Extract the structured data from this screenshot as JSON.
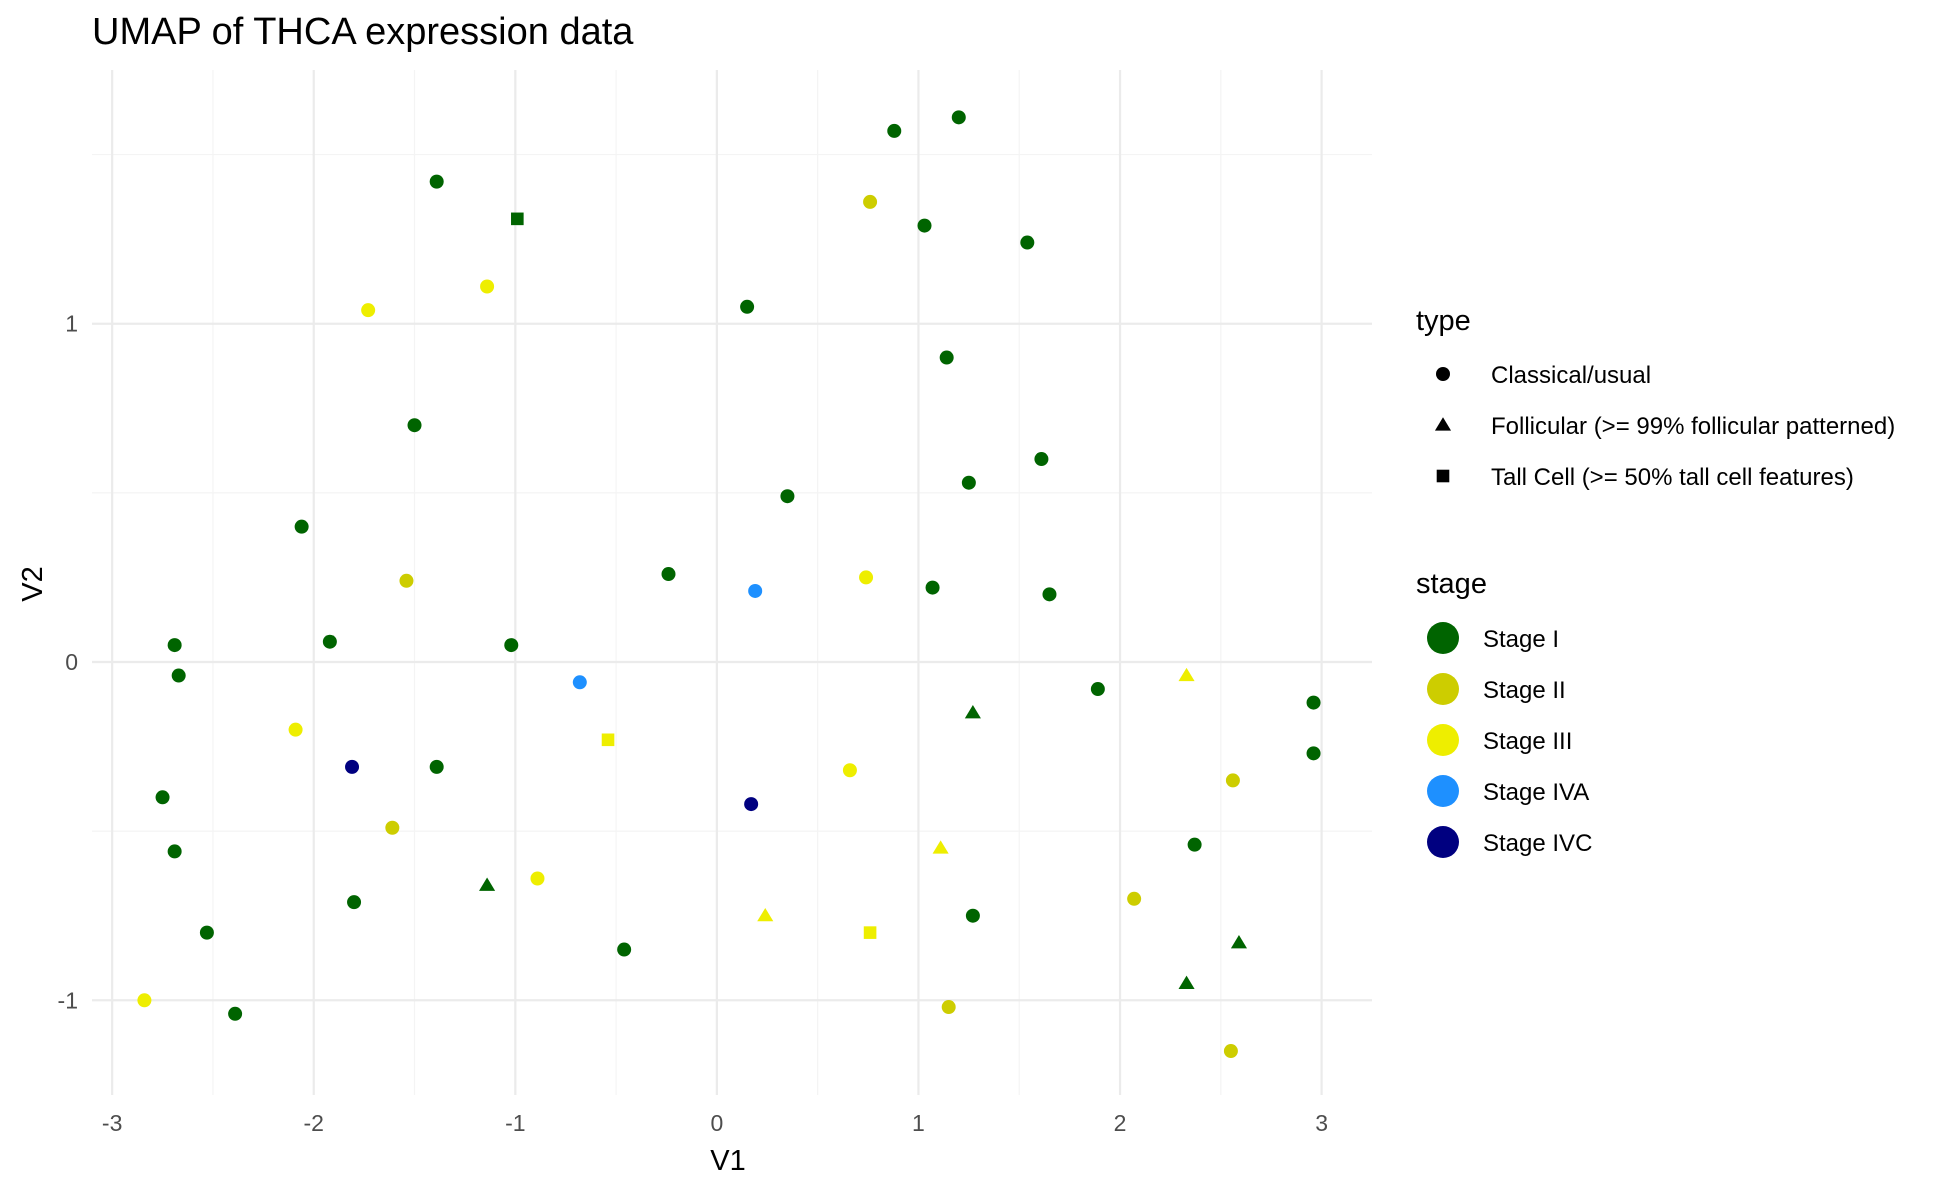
{
  "chart_data": {
    "type": "scatter",
    "title": "UMAP of THCA expression data",
    "xlabel": "V1",
    "ylabel": "V2",
    "xlim": [
      -3.1,
      3.25
    ],
    "ylim": [
      -1.28,
      1.75
    ],
    "x_ticks": [
      -3,
      -2,
      -1,
      0,
      1,
      2,
      3
    ],
    "x_tick_labels": [
      "-3",
      "-2",
      "-1",
      "0",
      "1",
      "2",
      "3"
    ],
    "y_ticks": [
      -1,
      0,
      1
    ],
    "y_tick_labels": [
      "-1",
      "0",
      "1"
    ],
    "grid": true,
    "legend_position": "right",
    "legends": {
      "type": {
        "title": "type",
        "entries": [
          {
            "label": "Classical/usual",
            "shape": "circle"
          },
          {
            "label": "Follicular (>= 99% follicular patterned)",
            "shape": "triangle"
          },
          {
            "label": "Tall Cell (>= 50% tall cell features)",
            "shape": "square"
          }
        ]
      },
      "stage": {
        "title": "stage",
        "entries": [
          {
            "label": "Stage I",
            "color": "#006400"
          },
          {
            "label": "Stage II",
            "color": "#CDCD00"
          },
          {
            "label": "Stage III",
            "color": "#EEEE00"
          },
          {
            "label": "Stage IVA",
            "color": "#1E90FF"
          },
          {
            "label": "Stage IVC",
            "color": "#000080"
          }
        ]
      }
    },
    "points": [
      {
        "x": 1.2,
        "y": 1.61,
        "type": "Classical/usual",
        "stage": "Stage I"
      },
      {
        "x": 0.88,
        "y": 1.57,
        "type": "Classical/usual",
        "stage": "Stage I"
      },
      {
        "x": -1.39,
        "y": 1.42,
        "type": "Classical/usual",
        "stage": "Stage I"
      },
      {
        "x": 0.76,
        "y": 1.36,
        "type": "Classical/usual",
        "stage": "Stage II"
      },
      {
        "x": -0.99,
        "y": 1.31,
        "type": "Tall Cell (>= 50% tall cell features)",
        "stage": "Stage I"
      },
      {
        "x": 1.03,
        "y": 1.29,
        "type": "Classical/usual",
        "stage": "Stage I"
      },
      {
        "x": 1.54,
        "y": 1.24,
        "type": "Classical/usual",
        "stage": "Stage I"
      },
      {
        "x": -1.14,
        "y": 1.11,
        "type": "Classical/usual",
        "stage": "Stage III"
      },
      {
        "x": 0.15,
        "y": 1.05,
        "type": "Classical/usual",
        "stage": "Stage I"
      },
      {
        "x": -1.73,
        "y": 1.04,
        "type": "Classical/usual",
        "stage": "Stage III"
      },
      {
        "x": 1.14,
        "y": 0.9,
        "type": "Classical/usual",
        "stage": "Stage I"
      },
      {
        "x": -1.5,
        "y": 0.7,
        "type": "Classical/usual",
        "stage": "Stage I"
      },
      {
        "x": 1.61,
        "y": 0.6,
        "type": "Classical/usual",
        "stage": "Stage I"
      },
      {
        "x": 1.25,
        "y": 0.53,
        "type": "Classical/usual",
        "stage": "Stage I"
      },
      {
        "x": 0.35,
        "y": 0.49,
        "type": "Classical/usual",
        "stage": "Stage I"
      },
      {
        "x": -2.06,
        "y": 0.4,
        "type": "Classical/usual",
        "stage": "Stage I"
      },
      {
        "x": -0.24,
        "y": 0.26,
        "type": "Classical/usual",
        "stage": "Stage I"
      },
      {
        "x": 0.74,
        "y": 0.25,
        "type": "Classical/usual",
        "stage": "Stage III"
      },
      {
        "x": -1.54,
        "y": 0.24,
        "type": "Classical/usual",
        "stage": "Stage II"
      },
      {
        "x": 1.07,
        "y": 0.22,
        "type": "Classical/usual",
        "stage": "Stage I"
      },
      {
        "x": 0.19,
        "y": 0.21,
        "type": "Classical/usual",
        "stage": "Stage IVA"
      },
      {
        "x": 1.65,
        "y": 0.2,
        "type": "Classical/usual",
        "stage": "Stage I"
      },
      {
        "x": -1.92,
        "y": 0.06,
        "type": "Classical/usual",
        "stage": "Stage I"
      },
      {
        "x": -2.69,
        "y": 0.05,
        "type": "Classical/usual",
        "stage": "Stage I"
      },
      {
        "x": -1.02,
        "y": 0.05,
        "type": "Classical/usual",
        "stage": "Stage I"
      },
      {
        "x": -2.67,
        "y": -0.04,
        "type": "Classical/usual",
        "stage": "Stage I"
      },
      {
        "x": 2.33,
        "y": -0.04,
        "type": "Follicular (>= 99% follicular patterned)",
        "stage": "Stage III"
      },
      {
        "x": -0.68,
        "y": -0.06,
        "type": "Classical/usual",
        "stage": "Stage IVA"
      },
      {
        "x": 1.89,
        "y": -0.08,
        "type": "Classical/usual",
        "stage": "Stage I"
      },
      {
        "x": 2.96,
        "y": -0.12,
        "type": "Classical/usual",
        "stage": "Stage I"
      },
      {
        "x": 1.27,
        "y": -0.15,
        "type": "Follicular (>= 99% follicular patterned)",
        "stage": "Stage I"
      },
      {
        "x": -2.09,
        "y": -0.2,
        "type": "Classical/usual",
        "stage": "Stage III"
      },
      {
        "x": -0.54,
        "y": -0.23,
        "type": "Tall Cell (>= 50% tall cell features)",
        "stage": "Stage III"
      },
      {
        "x": 2.96,
        "y": -0.27,
        "type": "Classical/usual",
        "stage": "Stage I"
      },
      {
        "x": -1.81,
        "y": -0.31,
        "type": "Classical/usual",
        "stage": "Stage IVC"
      },
      {
        "x": -1.39,
        "y": -0.31,
        "type": "Classical/usual",
        "stage": "Stage I"
      },
      {
        "x": 0.66,
        "y": -0.32,
        "type": "Classical/usual",
        "stage": "Stage III"
      },
      {
        "x": 2.56,
        "y": -0.35,
        "type": "Classical/usual",
        "stage": "Stage II"
      },
      {
        "x": -2.75,
        "y": -0.4,
        "type": "Classical/usual",
        "stage": "Stage I"
      },
      {
        "x": 0.17,
        "y": -0.42,
        "type": "Classical/usual",
        "stage": "Stage IVC"
      },
      {
        "x": -1.61,
        "y": -0.49,
        "type": "Classical/usual",
        "stage": "Stage II"
      },
      {
        "x": 2.37,
        "y": -0.54,
        "type": "Classical/usual",
        "stage": "Stage I"
      },
      {
        "x": 1.11,
        "y": -0.55,
        "type": "Follicular (>= 99% follicular patterned)",
        "stage": "Stage III"
      },
      {
        "x": -2.69,
        "y": -0.56,
        "type": "Classical/usual",
        "stage": "Stage I"
      },
      {
        "x": -0.89,
        "y": -0.64,
        "type": "Classical/usual",
        "stage": "Stage III"
      },
      {
        "x": -1.14,
        "y": -0.66,
        "type": "Follicular (>= 99% follicular patterned)",
        "stage": "Stage I"
      },
      {
        "x": 2.07,
        "y": -0.7,
        "type": "Classical/usual",
        "stage": "Stage II"
      },
      {
        "x": -1.8,
        "y": -0.71,
        "type": "Classical/usual",
        "stage": "Stage I"
      },
      {
        "x": 1.27,
        "y": -0.75,
        "type": "Classical/usual",
        "stage": "Stage I"
      },
      {
        "x": 0.24,
        "y": -0.75,
        "type": "Follicular (>= 99% follicular patterned)",
        "stage": "Stage III"
      },
      {
        "x": -2.53,
        "y": -0.8,
        "type": "Classical/usual",
        "stage": "Stage I"
      },
      {
        "x": 0.76,
        "y": -0.8,
        "type": "Tall Cell (>= 50% tall cell features)",
        "stage": "Stage III"
      },
      {
        "x": 2.59,
        "y": -0.83,
        "type": "Follicular (>= 99% follicular patterned)",
        "stage": "Stage I"
      },
      {
        "x": -0.46,
        "y": -0.85,
        "type": "Classical/usual",
        "stage": "Stage I"
      },
      {
        "x": 2.33,
        "y": -0.95,
        "type": "Follicular (>= 99% follicular patterned)",
        "stage": "Stage I"
      },
      {
        "x": -2.84,
        "y": -1.0,
        "type": "Classical/usual",
        "stage": "Stage III"
      },
      {
        "x": 1.15,
        "y": -1.02,
        "type": "Classical/usual",
        "stage": "Stage II"
      },
      {
        "x": -2.39,
        "y": -1.04,
        "type": "Classical/usual",
        "stage": "Stage I"
      },
      {
        "x": 2.55,
        "y": -1.15,
        "type": "Classical/usual",
        "stage": "Stage II"
      }
    ]
  }
}
